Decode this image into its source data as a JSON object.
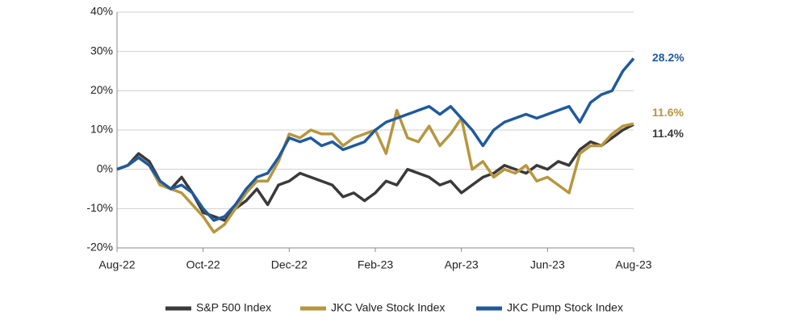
{
  "chart_data": {
    "type": "line",
    "x": [
      0,
      0.25,
      0.5,
      0.75,
      1,
      1.25,
      1.5,
      1.75,
      2,
      2.25,
      2.5,
      2.75,
      3,
      3.25,
      3.5,
      3.75,
      4,
      4.25,
      4.5,
      4.75,
      5,
      5.25,
      5.5,
      5.75,
      6,
      6.25,
      6.5,
      6.75,
      7,
      7.25,
      7.5,
      7.75,
      8,
      8.25,
      8.5,
      8.75,
      9,
      9.25,
      9.5,
      9.75,
      10,
      10.25,
      10.5,
      10.75,
      11,
      11.25,
      11.5,
      11.75,
      12
    ],
    "xlim": [
      0,
      12
    ],
    "xticks": [
      {
        "value": 0,
        "label": "Aug-22"
      },
      {
        "value": 2,
        "label": "Oct-22"
      },
      {
        "value": 4,
        "label": "Dec-22"
      },
      {
        "value": 6,
        "label": "Feb-23"
      },
      {
        "value": 8,
        "label": "Apr-23"
      },
      {
        "value": 10,
        "label": "Jun-23"
      },
      {
        "value": 12,
        "label": "Aug-23"
      }
    ],
    "ylim": [
      -20,
      40
    ],
    "yticks": [
      {
        "value": -20,
        "label": "-20%"
      },
      {
        "value": -10,
        "label": "-10%"
      },
      {
        "value": 0,
        "label": "0%"
      },
      {
        "value": 10,
        "label": "10%"
      },
      {
        "value": 20,
        "label": "20%"
      },
      {
        "value": 30,
        "label": "30%"
      },
      {
        "value": 40,
        "label": "40%"
      }
    ],
    "grid": true,
    "legend": "bottom",
    "series": [
      {
        "name": "S&P 500 Index",
        "color": "#3a3a3a",
        "end_label": "11.4%",
        "values": [
          0,
          1,
          4,
          2,
          -3,
          -5,
          -2,
          -6,
          -11,
          -12,
          -13,
          -10,
          -8,
          -5,
          -9,
          -4,
          -3,
          -1,
          -2,
          -3,
          -4,
          -7,
          -6,
          -8,
          -6,
          -3,
          -4,
          0,
          -1,
          -2,
          -4,
          -3,
          -6,
          -4,
          -2,
          -1,
          1,
          0,
          -1,
          1,
          0,
          2,
          1,
          5,
          7,
          6,
          8,
          10,
          11.4
        ]
      },
      {
        "name": "JKC Valve Stock Index",
        "color": "#b8963e",
        "end_label": "11.6%",
        "values": [
          0,
          1,
          3,
          1,
          -4,
          -5,
          -6,
          -9,
          -12,
          -16,
          -14,
          -10,
          -6,
          -3,
          -3,
          2,
          9,
          8,
          10,
          9,
          9,
          6,
          8,
          9,
          10,
          4,
          15,
          8,
          7,
          11,
          6,
          9,
          13,
          0,
          2,
          -2,
          0,
          -1,
          1,
          -3,
          -2,
          -4,
          -6,
          4,
          6,
          6,
          9,
          11,
          11.6
        ]
      },
      {
        "name": "JKC Pump Stock Index",
        "color": "#1f5a9e",
        "end_label": "28.2%",
        "values": [
          0,
          1,
          3,
          1,
          -3,
          -5,
          -4,
          -6,
          -10,
          -13,
          -12,
          -9,
          -5,
          -2,
          -1,
          3,
          8,
          7,
          8,
          6,
          7,
          5,
          6,
          7,
          10,
          12,
          13,
          14,
          15,
          16,
          14,
          16,
          13,
          10,
          6,
          10,
          12,
          13,
          14,
          13,
          14,
          15,
          16,
          12,
          17,
          19,
          20,
          25,
          28.2
        ]
      }
    ]
  }
}
